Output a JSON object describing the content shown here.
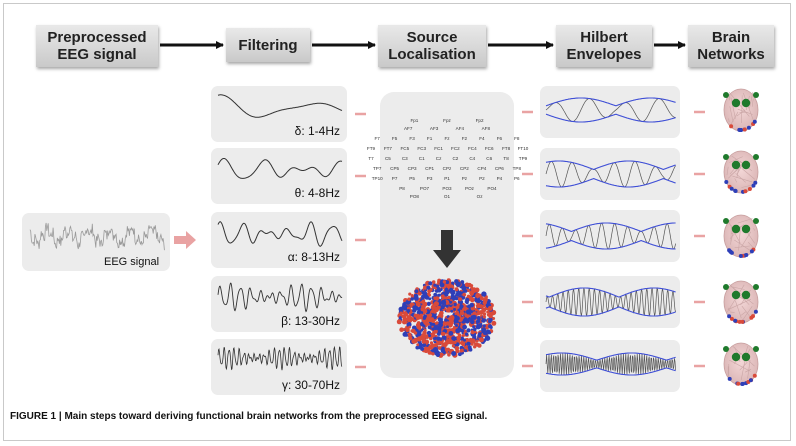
{
  "headers": {
    "preprocessed": "Preprocessed\nEEG signal",
    "filtering": "Filtering",
    "source": "Source\nLocalisation",
    "hilbert": "Hilbert\nEnvelopes",
    "brain": "Brain\nNetworks"
  },
  "eeg_label": "EEG signal",
  "bands": [
    {
      "label": "δ: 1-4Hz"
    },
    {
      "label": "θ: 4-8Hz"
    },
    {
      "label": "α: 8-13Hz"
    },
    {
      "label": "β: 13-30Hz"
    },
    {
      "label": "γ: 30-70Hz"
    }
  ],
  "electrodes": [
    "Fp1",
    "Fpz",
    "Fp2",
    "AF7",
    "AF3",
    "AF4",
    "AF8",
    "F7",
    "F5",
    "F3",
    "F1",
    "Fz",
    "F2",
    "F4",
    "F6",
    "F8",
    "FT9",
    "FT7",
    "FC5",
    "FC3",
    "FC1",
    "FC2",
    "FC4",
    "FC6",
    "FT8",
    "FT10",
    "T7",
    "C5",
    "C3",
    "C1",
    "Cz",
    "C2",
    "C4",
    "C6",
    "T8",
    "TP9",
    "TP7",
    "CP5",
    "CP3",
    "CP1",
    "CPz",
    "CP2",
    "CP4",
    "CP6",
    "TP8",
    "TP10",
    "P7",
    "P5",
    "P3",
    "P1",
    "Pz",
    "P2",
    "P4",
    "P6",
    "P8",
    "PO7",
    "PO3",
    "POz",
    "PO4",
    "PO8",
    "O1",
    "Oz",
    "O2"
  ],
  "caption": "FIGURE 1 | Main steps toward deriving functional brain networks from the preprocessed EEG signal.",
  "colors": {
    "accent_arrow": "#e9a3a3",
    "envelope": "#3f4fd6",
    "brain_red": "#d94a3a",
    "brain_blue": "#2e3fb8"
  }
}
